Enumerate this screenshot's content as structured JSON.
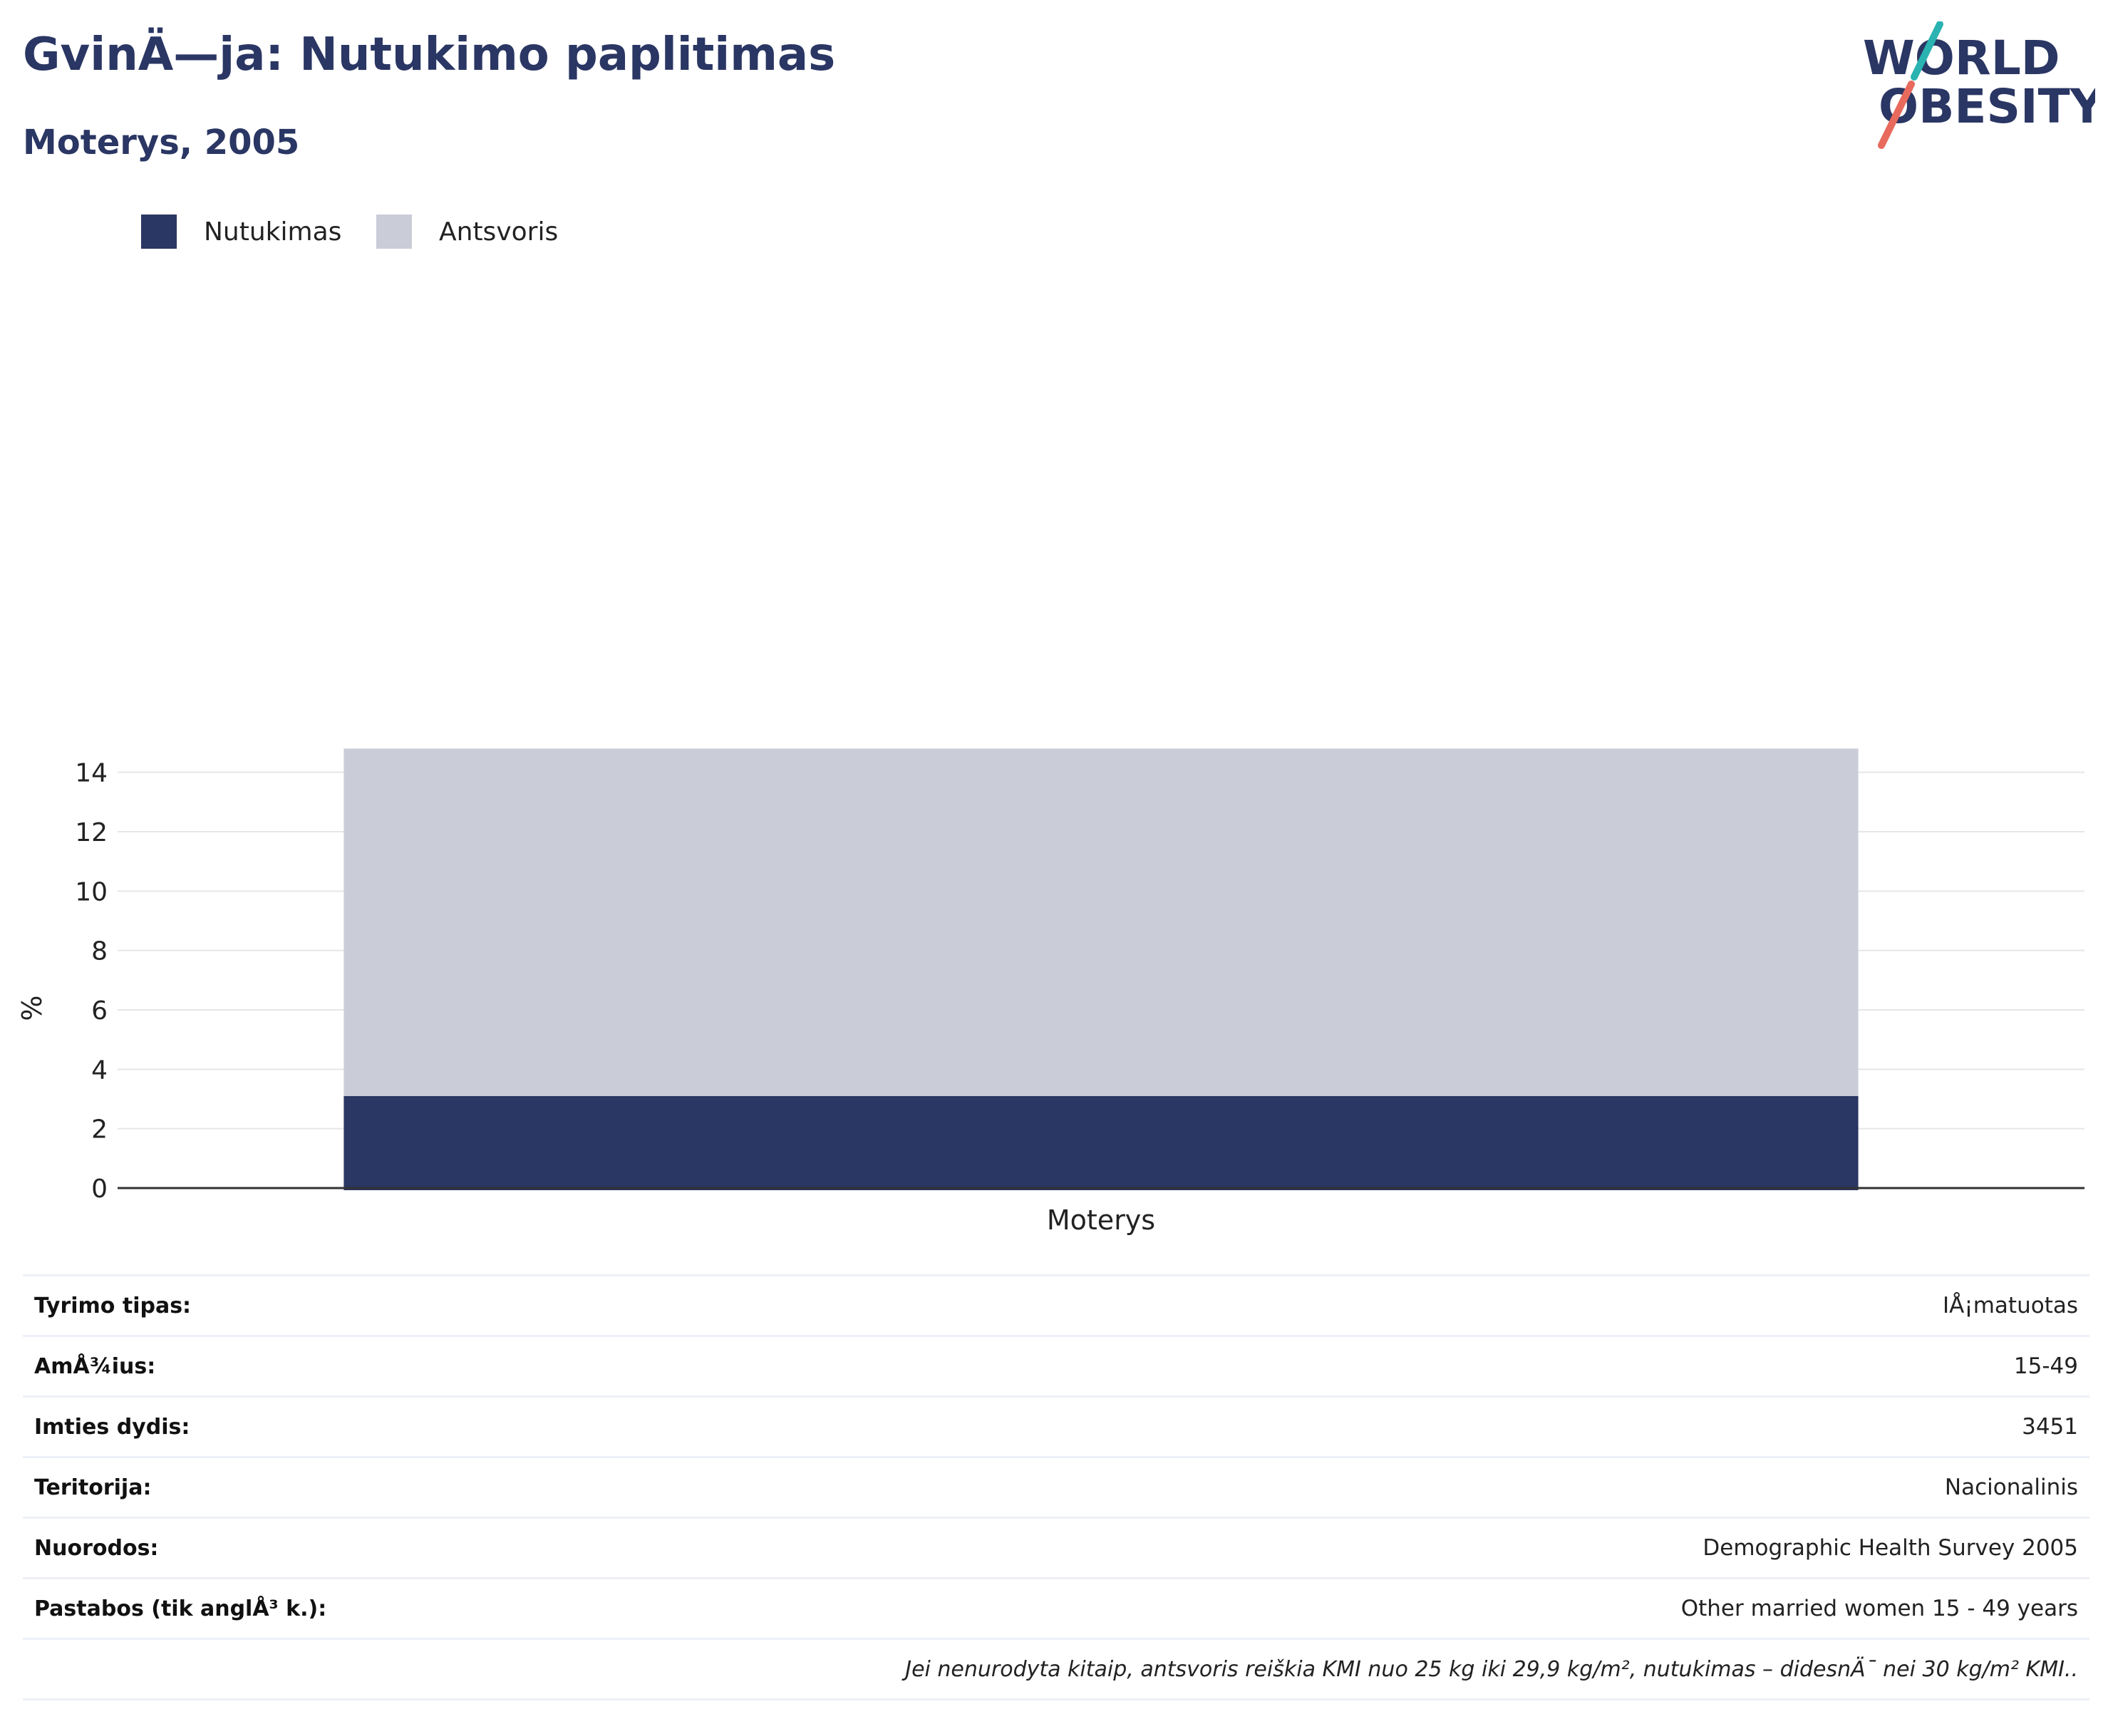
{
  "header": {
    "title": "GvinÄ—ja: Nutukimo paplitimas",
    "subtitle": "Moterys, 2005"
  },
  "logo": {
    "line1": "WORLD",
    "line2": "OBESITY",
    "colors": {
      "text": "#2a3663",
      "slash_top": "#2ab3b1",
      "slash_bottom": "#e76a5d"
    }
  },
  "legend": [
    {
      "label": "Nutukimas",
      "color": "#2a3663"
    },
    {
      "label": "Antsvoris",
      "color": "#cacdd8"
    }
  ],
  "chart_data": {
    "type": "bar",
    "stacked": true,
    "categories": [
      "Moterys"
    ],
    "series": [
      {
        "name": "Nutukimas",
        "values": [
          3.1
        ],
        "color": "#2a3663"
      },
      {
        "name": "Antsvoris",
        "values": [
          11.7
        ],
        "color": "#cacdd8"
      }
    ],
    "ylabel": "%",
    "ylim": [
      0,
      15
    ],
    "yticks": [
      0,
      2,
      4,
      6,
      8,
      10,
      12,
      14
    ],
    "grid": true,
    "legend_position": "top-left"
  },
  "info": {
    "rows": [
      {
        "label": "Tyrimo tipas:",
        "value": "IÅ¡matuotas"
      },
      {
        "label": "AmÅ¾ius:",
        "value": "15-49"
      },
      {
        "label": "Imties dydis:",
        "value": "3451"
      },
      {
        "label": "Teritorija:",
        "value": "Nacionalinis"
      },
      {
        "label": "Nuorodos:",
        "value": "Demographic Health Survey 2005"
      },
      {
        "label": "Pastabos (tik anglÅ³ k.):",
        "value": "Other married women 15 - 49 years"
      }
    ],
    "note": "Jei nenurodyta kitaip, antsvoris reiškia KMI nuo 25 kg iki 29,9 kg/m², nutukimas – didesnÄ¯ nei 30 kg/m² KMI.."
  }
}
